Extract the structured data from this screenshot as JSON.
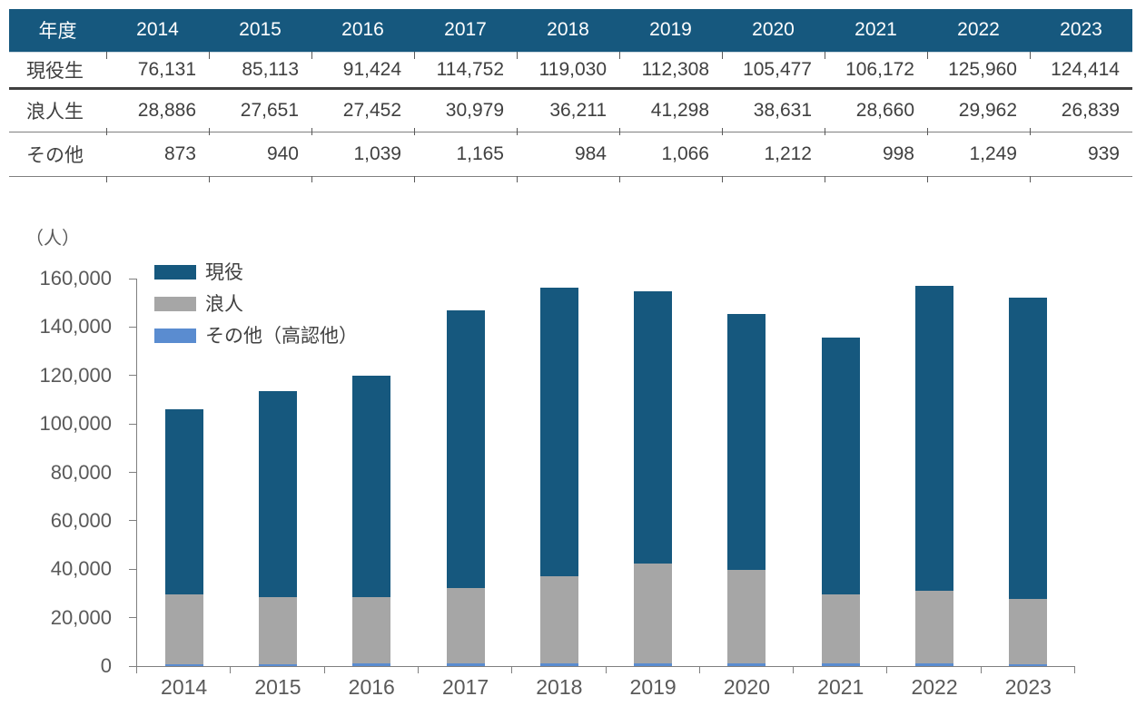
{
  "table": {
    "corner_label": "年度",
    "years": [
      "2014",
      "2015",
      "2016",
      "2017",
      "2018",
      "2019",
      "2020",
      "2021",
      "2022",
      "2023"
    ],
    "rows": [
      {
        "label": "現役生",
        "values": [
          "76,131",
          "85,113",
          "91,424",
          "114,752",
          "119,030",
          "112,308",
          "105,477",
          "106,172",
          "125,960",
          "124,414"
        ]
      },
      {
        "label": "浪人生",
        "values": [
          "28,886",
          "27,651",
          "27,452",
          "30,979",
          "36,211",
          "41,298",
          "38,631",
          "28,660",
          "29,962",
          "26,839"
        ]
      },
      {
        "label": "その他",
        "values": [
          "873",
          "940",
          "1,039",
          "1,165",
          "984",
          "1,066",
          "1,212",
          "998",
          "1,249",
          "939"
        ]
      }
    ]
  },
  "chart_data": {
    "type": "bar",
    "stacked": true,
    "unit_label": "（人）",
    "categories": [
      "2014",
      "2015",
      "2016",
      "2017",
      "2018",
      "2019",
      "2020",
      "2021",
      "2022",
      "2023"
    ],
    "series": [
      {
        "name": "現役",
        "color": "#16587E",
        "values": [
          76131,
          85113,
          91424,
          114752,
          119030,
          112308,
          105477,
          106172,
          125960,
          124414
        ]
      },
      {
        "name": "浪人",
        "color": "#A6A6A6",
        "values": [
          28886,
          27651,
          27452,
          30979,
          36211,
          41298,
          38631,
          28660,
          29962,
          26839
        ]
      },
      {
        "name": "その他（高認他）",
        "color": "#5A8CD0",
        "values": [
          873,
          940,
          1039,
          1165,
          984,
          1066,
          1212,
          998,
          1249,
          939
        ]
      }
    ],
    "stack_order_bottom_to_top": [
      2,
      1,
      0
    ],
    "ylim": [
      0,
      160000
    ],
    "ytick_step": 20000,
    "legend_position": "top-left-inside",
    "grid": false
  },
  "colors": {
    "header_bg": "#16587E",
    "axis": "#7F7F7F",
    "axis_text": "#595959",
    "table_text": "#404040"
  }
}
